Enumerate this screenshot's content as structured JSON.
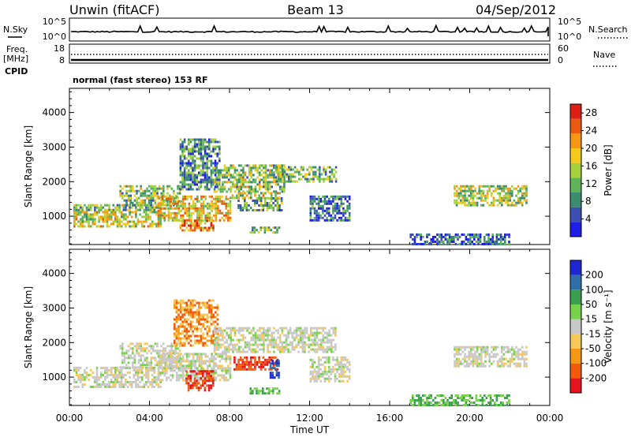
{
  "header": {
    "radar": "Unwin (fitACF)",
    "beam": "Beam 13",
    "date": "04/Sep/2012"
  },
  "top_panels": {
    "nsky_label": "N.Sky",
    "nsky_ticks": [
      "10^5",
      "10^0"
    ],
    "nsearch_label": "N.Search",
    "nsearch_ticks": [
      "10^5",
      "10^0"
    ],
    "freq_label_1": "Freq.",
    "freq_label_2": "[MHz]",
    "freq_ticks": [
      "18",
      "8"
    ],
    "nave_label": "Nave",
    "nave_ticks": [
      "60",
      "0"
    ],
    "cpid_label": "CPID",
    "cpid_text": "normal (fast stereo) 153 RF"
  },
  "chart_data": [
    {
      "type": "heatmap",
      "title": "",
      "xlabel": "Time UT",
      "ylabel": "Slant Range [km]",
      "xlim": [
        "00:00",
        "24:00"
      ],
      "ylim": [
        180,
        4700
      ],
      "x_ticks": [
        "00:00",
        "04:00",
        "08:00",
        "12:00",
        "16:00",
        "20:00",
        "00:00"
      ],
      "y_ticks": [
        1000,
        2000,
        3000,
        4000
      ],
      "colorbar": {
        "label": "Power [dB]",
        "ticks": [
          4,
          8,
          12,
          16,
          20,
          24,
          28
        ],
        "range": [
          0,
          30
        ],
        "colors": [
          "#1e1ee6",
          "#3c50b4",
          "#3c8c6e",
          "#5fb45a",
          "#a5d23c",
          "#f5c81e",
          "#f59614",
          "#eb5a0f",
          "#dc1e14"
        ]
      },
      "regions": [
        {
          "t0": 0.2,
          "t1": 4.6,
          "r_lo": 700,
          "r_hi": 1150,
          "level": 0.55
        },
        {
          "t0": 0.2,
          "t1": 4.6,
          "r_lo": 1150,
          "r_hi": 1350,
          "level": 0.4
        },
        {
          "t0": 2.5,
          "t1": 5.5,
          "r_lo": 1300,
          "r_hi": 1900,
          "level": 0.45
        },
        {
          "t0": 4.4,
          "t1": 8.0,
          "r_lo": 850,
          "r_hi": 1600,
          "level": 0.62
        },
        {
          "t0": 5.5,
          "t1": 7.2,
          "r_lo": 600,
          "r_hi": 900,
          "level": 0.75
        },
        {
          "t0": 5.5,
          "t1": 7.5,
          "r_lo": 1800,
          "r_hi": 3250,
          "level": 0.3
        },
        {
          "t0": 7.2,
          "t1": 10.7,
          "r_lo": 1700,
          "r_hi": 2500,
          "level": 0.45
        },
        {
          "t0": 8.4,
          "t1": 10.6,
          "r_lo": 1200,
          "r_hi": 1550,
          "level": 0.35
        },
        {
          "t0": 8.0,
          "t1": 10.5,
          "r_lo": 1550,
          "r_hi": 1700,
          "level": 0.55
        },
        {
          "t0": 10.3,
          "t1": 13.3,
          "r_lo": 2000,
          "r_hi": 2450,
          "level": 0.42
        },
        {
          "t0": 12.0,
          "t1": 14.0,
          "r_lo": 900,
          "r_hi": 1600,
          "level": 0.22
        },
        {
          "t0": 19.2,
          "t1": 22.8,
          "r_lo": 1300,
          "r_hi": 1900,
          "level": 0.5
        },
        {
          "t0": 9.0,
          "t1": 10.5,
          "r_lo": 500,
          "r_hi": 700,
          "level": 0.4
        },
        {
          "t0": 17.0,
          "t1": 22.0,
          "r_lo": 200,
          "r_hi": 500,
          "level": 0.2
        }
      ]
    },
    {
      "type": "heatmap",
      "title": "",
      "xlabel": "Time UT",
      "ylabel": "Slant Range [km]",
      "xlim": [
        "00:00",
        "24:00"
      ],
      "ylim": [
        180,
        4700
      ],
      "x_ticks": [
        "00:00",
        "04:00",
        "08:00",
        "12:00",
        "16:00",
        "20:00",
        "00:00"
      ],
      "y_ticks": [
        1000,
        2000,
        3000,
        4000
      ],
      "colorbar": {
        "label": "Velocity [m s⁻¹]",
        "ticks": [
          "200",
          "100",
          "50",
          "15",
          "-15",
          "-50",
          "-100",
          "-200"
        ],
        "colors": [
          "#1e28d2",
          "#2f6fa8",
          "#3aa050",
          "#76d24a",
          "#c8c8c8",
          "#f5c85a",
          "#f59614",
          "#f05a0a",
          "#e6141e"
        ]
      },
      "regions": [
        {
          "t0": 0.2,
          "t1": 4.6,
          "r_lo": 700,
          "r_hi": 1300,
          "vel": "grey"
        },
        {
          "t0": 2.5,
          "t1": 5.5,
          "r_lo": 1300,
          "r_hi": 2000,
          "vel": "grey"
        },
        {
          "t0": 4.4,
          "t1": 8.0,
          "r_lo": 900,
          "r_hi": 1700,
          "vel": "grey"
        },
        {
          "t0": 5.8,
          "t1": 7.2,
          "r_lo": 600,
          "r_hi": 1200,
          "vel": "red"
        },
        {
          "t0": 5.2,
          "t1": 7.4,
          "r_lo": 1900,
          "r_hi": 3250,
          "vel": "orange"
        },
        {
          "t0": 8.2,
          "t1": 10.4,
          "r_lo": 1200,
          "r_hi": 1600,
          "vel": "red"
        },
        {
          "t0": 7.2,
          "t1": 13.3,
          "r_lo": 1700,
          "r_hi": 2450,
          "vel": "grey"
        },
        {
          "t0": 12.0,
          "t1": 14.0,
          "r_lo": 900,
          "r_hi": 1600,
          "vel": "grey"
        },
        {
          "t0": 19.2,
          "t1": 22.8,
          "r_lo": 1300,
          "r_hi": 1900,
          "vel": "grey"
        },
        {
          "t0": 10.0,
          "t1": 10.5,
          "r_lo": 1000,
          "r_hi": 1500,
          "vel": "blue"
        },
        {
          "t0": 9.0,
          "t1": 10.5,
          "r_lo": 500,
          "r_hi": 700,
          "vel": "green"
        },
        {
          "t0": 17.0,
          "t1": 22.0,
          "r_lo": 200,
          "r_hi": 500,
          "vel": "green"
        }
      ]
    }
  ]
}
